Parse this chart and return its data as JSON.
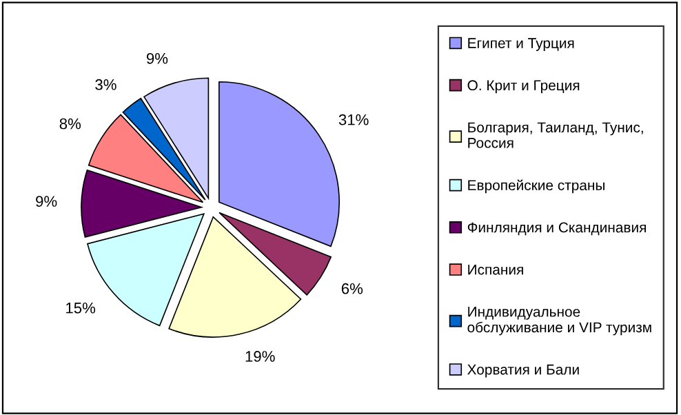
{
  "chart_data": {
    "type": "pie",
    "categories": [
      "Египет и Турция",
      "О. Крит и Греция",
      "Болгария, Таиланд, Тунис,\nРоссия",
      "Европейские страны",
      "Финляндия и Скандинавия",
      "Испания",
      "Индивидуальное\nобслуживание и VIP туризм",
      "Хорватия и Бали"
    ],
    "values": [
      31,
      6,
      19,
      15,
      9,
      8,
      3,
      9
    ],
    "value_labels": [
      "31%",
      "6%",
      "19%",
      "15%",
      "9%",
      "8%",
      "3%",
      "9%"
    ],
    "colors": [
      "#9999ff",
      "#993366",
      "#ffffcc",
      "#ccffff",
      "#660066",
      "#ff8080",
      "#0066cc",
      "#ccccff"
    ],
    "legend": "right"
  }
}
